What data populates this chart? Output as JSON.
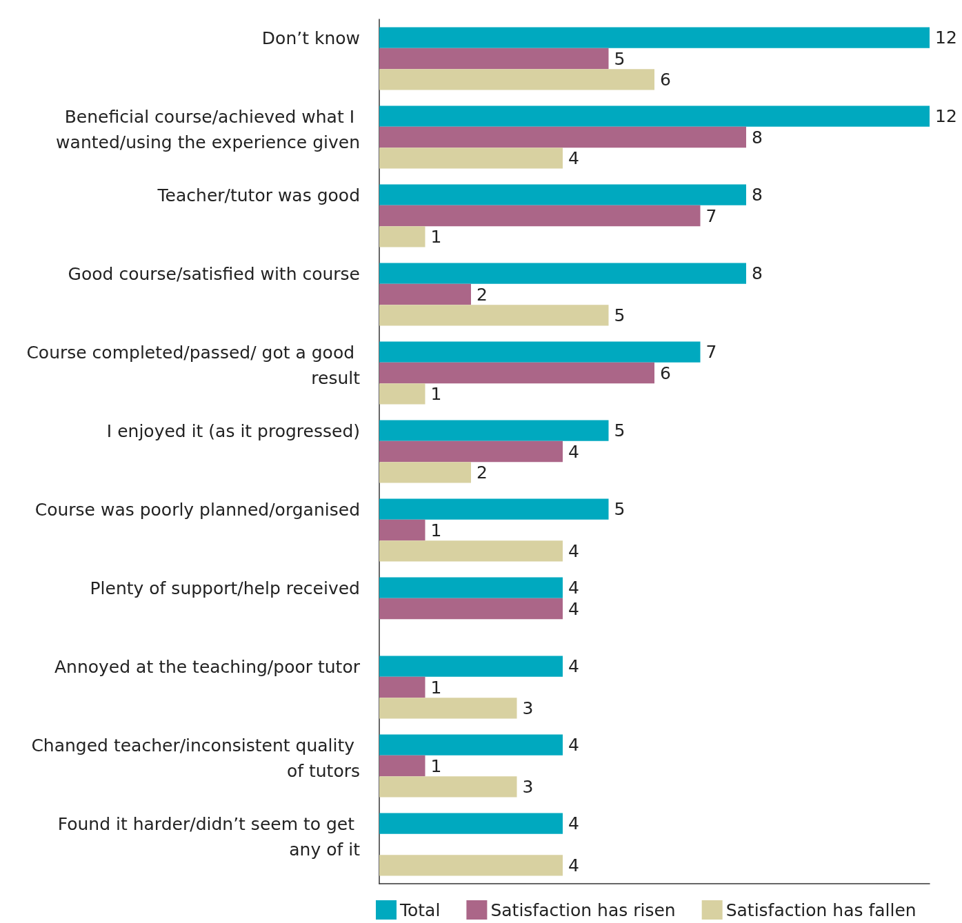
{
  "chart_data": {
    "type": "bar",
    "orientation": "horizontal",
    "categories": [
      "Don’t know",
      "Beneficial course/achieved what I wanted/using the experience given",
      "Teacher/tutor was good",
      "Good course/satisfied with course",
      "Course completed/passed/ got a good result",
      "I enjoyed it (as it progressed)",
      "Course was poorly planned/organised",
      "Plenty of support/help received",
      "Annoyed at the teaching/poor tutor",
      "Changed teacher/inconsistent quality of tutors",
      "Found it harder/didn’t seem to get any of it"
    ],
    "series": [
      {
        "name": "Total",
        "color": "#00a9bf",
        "values": [
          12,
          12,
          8,
          8,
          7,
          5,
          5,
          4,
          4,
          4,
          4
        ]
      },
      {
        "name": "Satisfaction has risen",
        "color": "#ab6688",
        "values": [
          5,
          8,
          7,
          2,
          6,
          4,
          1,
          4,
          1,
          1,
          null
        ]
      },
      {
        "name": "Satisfaction has fallen",
        "color": "#d8d1a1",
        "values": [
          6,
          4,
          1,
          5,
          1,
          2,
          4,
          null,
          3,
          3,
          4
        ]
      }
    ],
    "xlim": [
      0,
      12
    ],
    "tick_labels": "y",
    "data_labels": true,
    "grid": false,
    "legend": "bottom left"
  }
}
